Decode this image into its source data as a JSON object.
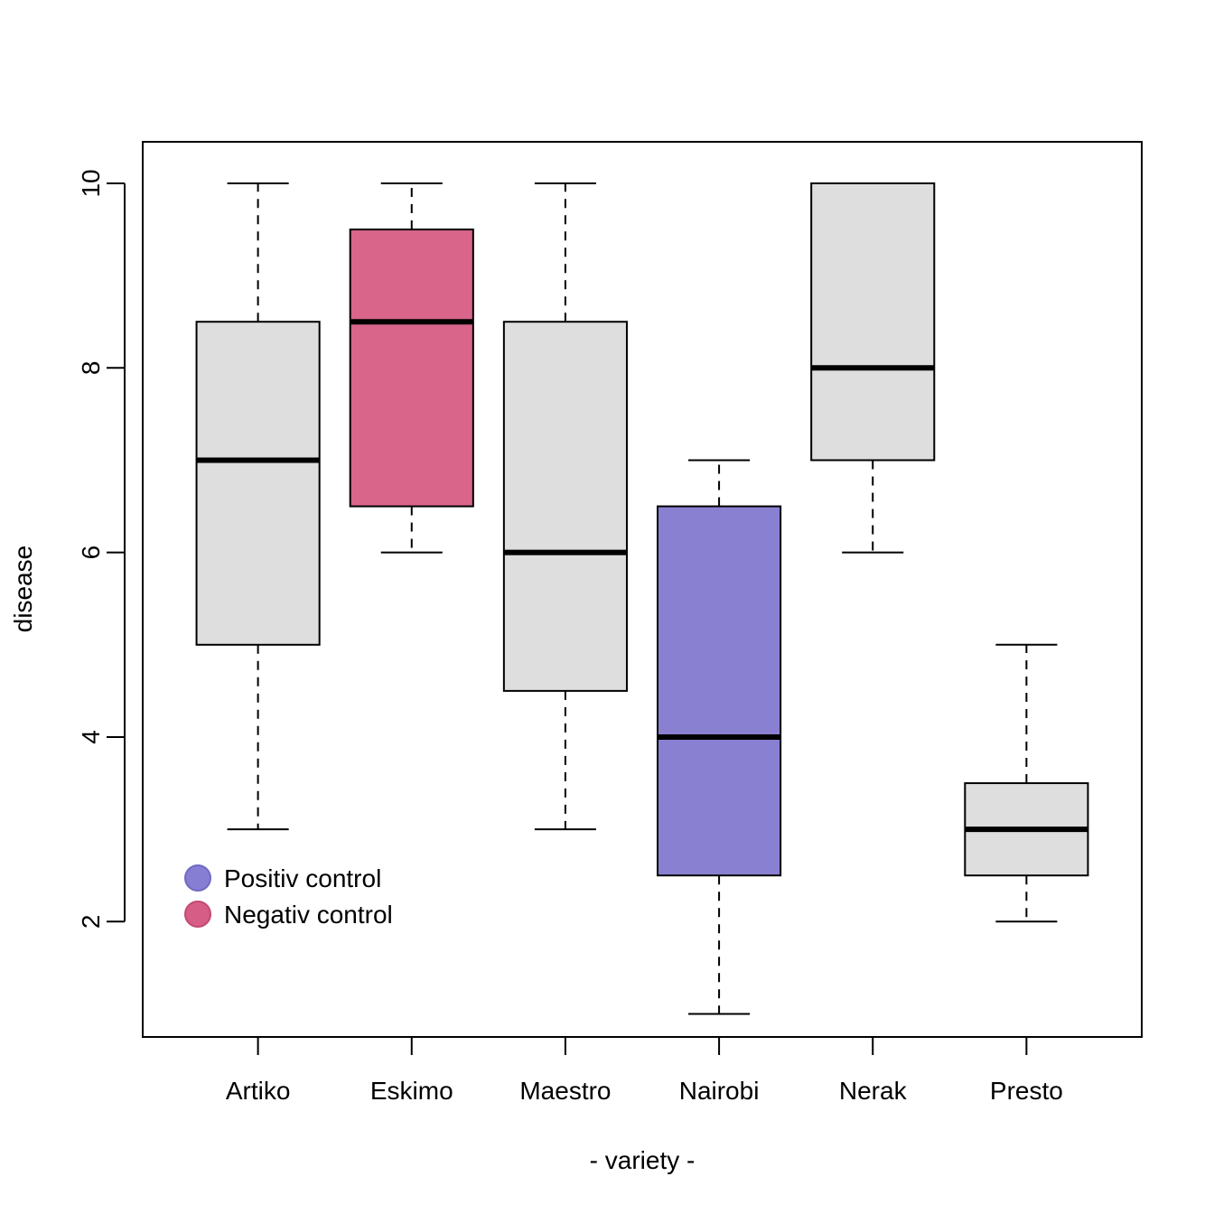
{
  "chart_data": {
    "type": "boxplot",
    "title": "",
    "xlabel": "- variety -",
    "ylabel": "disease",
    "ylim": [
      0.75,
      10.45
    ],
    "yticks": [
      2,
      4,
      6,
      8,
      10
    ],
    "ytick_labels": [
      "2",
      "4",
      "6",
      "8",
      "10"
    ],
    "categories": [
      "Artiko",
      "Eskimo",
      "Maestro",
      "Nairobi",
      "Nerak",
      "Presto"
    ],
    "boxes": [
      {
        "name": "Artiko",
        "min": 3,
        "q1": 5,
        "median": 7,
        "q3": 8.5,
        "max": 10,
        "group": "default"
      },
      {
        "name": "Eskimo",
        "min": 6,
        "q1": 6.5,
        "median": 8.5,
        "q3": 9.5,
        "max": 10,
        "group": "negative"
      },
      {
        "name": "Maestro",
        "min": 3,
        "q1": 4.5,
        "median": 6,
        "q3": 8.5,
        "max": 10,
        "group": "default"
      },
      {
        "name": "Nairobi",
        "min": 1,
        "q1": 2.5,
        "median": 4,
        "q3": 6.5,
        "max": 7,
        "group": "positive"
      },
      {
        "name": "Nerak",
        "min": 6,
        "q1": 7,
        "median": 8,
        "q3": 10,
        "max": 10,
        "group": "default"
      },
      {
        "name": "Presto",
        "min": 2,
        "q1": 2.5,
        "median": 3,
        "q3": 3.5,
        "max": 5,
        "group": "default"
      }
    ],
    "colors": {
      "default": "#dedede",
      "positive": "#8a80d2",
      "negative": "#d9658a",
      "legend_positive": "#7f78d0",
      "legend_negative": "#d45580",
      "legend_positive_border": "#6a62c0",
      "legend_negative_border": "#c0406a"
    },
    "legend": {
      "placement": "bottom-left",
      "entries": [
        {
          "label": "Positiv control",
          "group": "positive"
        },
        {
          "label": "Negativ control",
          "group": "negative"
        }
      ]
    }
  }
}
